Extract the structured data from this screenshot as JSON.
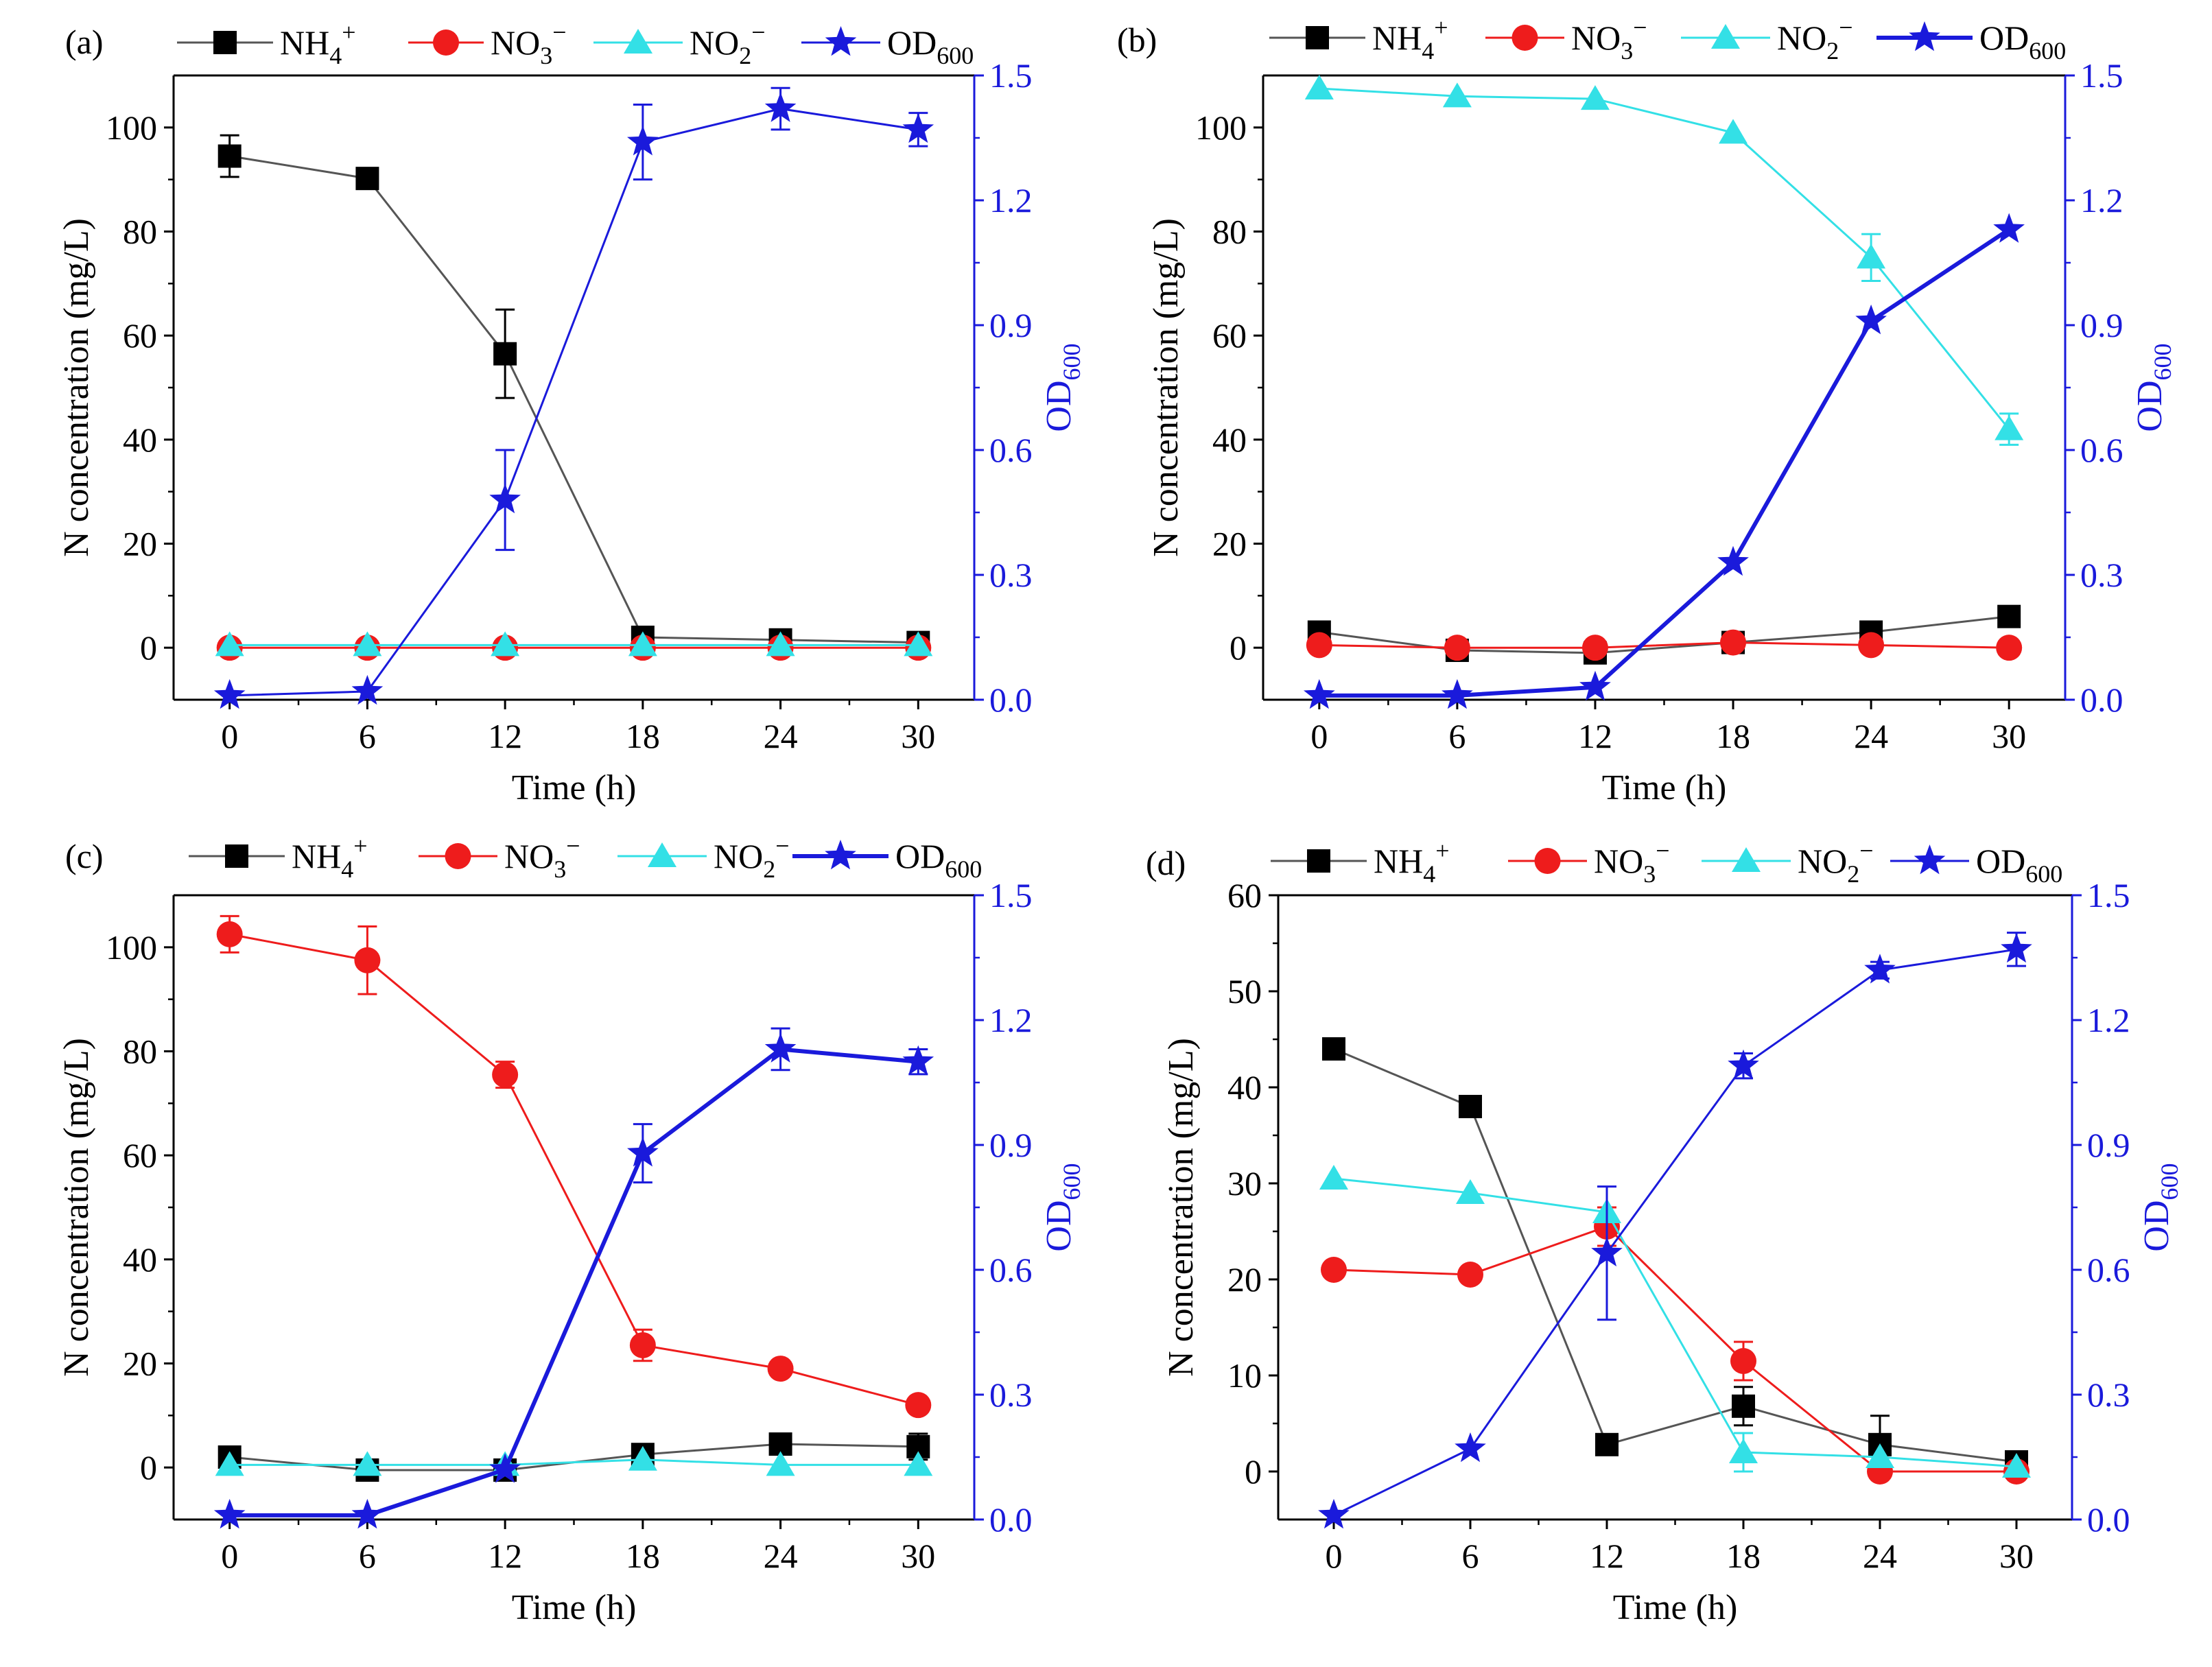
{
  "figure": {
    "colors": {
      "NH4": "#000000",
      "NO3": "#ee1c1c",
      "NO2": "#33e0e6",
      "OD": "#1a1adb",
      "nh4_line": "#555555",
      "axis": "#000000"
    },
    "legend": {
      "nh4": {
        "base": "NH",
        "sub": "4",
        "sup": "+"
      },
      "no3": {
        "base": "NO",
        "sub": "3",
        "sup": "−"
      },
      "no2": {
        "base": "NO",
        "sub": "2",
        "sup": "−"
      },
      "od": {
        "base": "OD",
        "sub": "600"
      }
    }
  },
  "chart_data": [
    {
      "panel_label": "(a)",
      "type": "line",
      "xlabel": "Time (h)",
      "ylabel_left": "N concentration (mg/L)",
      "ylabel_right": {
        "base": "OD",
        "sub": "600"
      },
      "x": [
        0,
        6,
        12,
        18,
        24,
        30
      ],
      "xticks": [
        "0",
        "6",
        "12",
        "18",
        "24",
        "30"
      ],
      "ylim_left": [
        -10,
        110
      ],
      "yticks_left": [
        "0",
        "20",
        "40",
        "60",
        "80",
        "100"
      ],
      "ylim_right": [
        0,
        1.5
      ],
      "yticks_right": [
        "0.0",
        "0.3",
        "0.6",
        "0.9",
        "1.2",
        "1.5"
      ],
      "series": [
        {
          "name": "NH4+",
          "axis": "left",
          "values": [
            94.5,
            90.2,
            56.5,
            2.0,
            1.5,
            1.0
          ],
          "errors": [
            4.0,
            0,
            8.5,
            0,
            0,
            0
          ],
          "line_width": 3
        },
        {
          "name": "NO3-",
          "axis": "left",
          "values": [
            0,
            0,
            0,
            0,
            0,
            0
          ],
          "errors": [
            0,
            0,
            0,
            0,
            0,
            0
          ],
          "line_width": 3
        },
        {
          "name": "NO2-",
          "axis": "left",
          "values": [
            0.5,
            0.5,
            0.5,
            0.5,
            0.5,
            0.5
          ],
          "errors": [
            0,
            0,
            0,
            0,
            0,
            0
          ],
          "line_width": 3
        },
        {
          "name": "OD600",
          "axis": "right",
          "values": [
            0.01,
            0.02,
            0.48,
            1.34,
            1.42,
            1.37
          ],
          "errors": [
            0,
            0,
            0.12,
            0.09,
            0.05,
            0.04
          ],
          "line_width": 3
        }
      ]
    },
    {
      "panel_label": "(b)",
      "type": "line",
      "xlabel": "Time (h)",
      "ylabel_left": "N concentration (mg/L)",
      "ylabel_right": {
        "base": "OD",
        "sub": "600"
      },
      "x": [
        0,
        6,
        12,
        18,
        24,
        30
      ],
      "xticks": [
        "0",
        "6",
        "12",
        "18",
        "24",
        "30"
      ],
      "ylim_left": [
        -10,
        110
      ],
      "yticks_left": [
        "0",
        "20",
        "40",
        "60",
        "80",
        "100"
      ],
      "ylim_right": [
        0,
        1.5
      ],
      "yticks_right": [
        "0.0",
        "0.3",
        "0.6",
        "0.9",
        "1.2",
        "1.5"
      ],
      "series": [
        {
          "name": "NH4+",
          "axis": "left",
          "values": [
            3.0,
            -0.5,
            -1.0,
            1.0,
            3.0,
            6.0
          ],
          "errors": [
            0,
            0,
            0,
            0,
            2.0,
            0
          ],
          "line_width": 3
        },
        {
          "name": "NO3-",
          "axis": "left",
          "values": [
            0.5,
            0,
            0,
            1.0,
            0.5,
            0
          ],
          "errors": [
            0,
            0,
            0,
            0,
            0,
            0
          ],
          "line_width": 3
        },
        {
          "name": "NO2-",
          "axis": "left",
          "values": [
            107.5,
            106,
            105.5,
            99,
            75,
            42
          ],
          "errors": [
            0,
            0,
            0,
            0,
            4.5,
            3.0
          ],
          "line_width": 3
        },
        {
          "name": "OD600",
          "axis": "right",
          "values": [
            0.01,
            0.01,
            0.03,
            0.33,
            0.91,
            1.13
          ],
          "errors": [
            0,
            0,
            0,
            0,
            0,
            0
          ],
          "line_width": 6
        }
      ]
    },
    {
      "panel_label": "(c)",
      "type": "line",
      "xlabel": "Time (h)",
      "ylabel_left": "N concentration (mg/L)",
      "ylabel_right": {
        "base": "OD",
        "sub": "600"
      },
      "x": [
        0,
        6,
        12,
        18,
        24,
        30
      ],
      "xticks": [
        "0",
        "6",
        "12",
        "18",
        "24",
        "30"
      ],
      "ylim_left": [
        -10,
        110
      ],
      "yticks_left": [
        "0",
        "20",
        "40",
        "60",
        "80",
        "100"
      ],
      "ylim_right": [
        0,
        1.5
      ],
      "yticks_right": [
        "0.0",
        "0.3",
        "0.6",
        "0.9",
        "1.2",
        "1.5"
      ],
      "series": [
        {
          "name": "NH4+",
          "axis": "left",
          "values": [
            2.0,
            -0.5,
            -0.5,
            2.5,
            4.5,
            4.0
          ],
          "errors": [
            0,
            0,
            0,
            0,
            0,
            2.5
          ],
          "line_width": 3
        },
        {
          "name": "NO3-",
          "axis": "left",
          "values": [
            102.5,
            97.5,
            75.5,
            23.5,
            19.0,
            12.0
          ],
          "errors": [
            3.5,
            6.5,
            2.5,
            3.0,
            0,
            0
          ],
          "line_width": 3
        },
        {
          "name": "NO2-",
          "axis": "left",
          "values": [
            0.5,
            0.5,
            0.5,
            1.5,
            0.5,
            0.5
          ],
          "errors": [
            0,
            0,
            0,
            0,
            0,
            0
          ],
          "line_width": 3
        },
        {
          "name": "OD600",
          "axis": "right",
          "values": [
            0.01,
            0.01,
            0.12,
            0.88,
            1.13,
            1.1
          ],
          "errors": [
            0,
            0,
            0,
            0.07,
            0.05,
            0.03
          ],
          "line_width": 6
        }
      ]
    },
    {
      "panel_label": "(d)",
      "type": "line",
      "xlabel": "Time (h)",
      "ylabel_left": "N concentration (mg/L)",
      "ylabel_right": {
        "base": "OD",
        "sub": "600"
      },
      "x": [
        0,
        6,
        12,
        18,
        24,
        30
      ],
      "xticks": [
        "0",
        "6",
        "12",
        "18",
        "24",
        "30"
      ],
      "ylim_left": [
        -5,
        60
      ],
      "yticks_left": [
        "0",
        "10",
        "20",
        "30",
        "40",
        "50",
        "60"
      ],
      "ylim_right": [
        0,
        1.5
      ],
      "yticks_right": [
        "0.0",
        "0.3",
        "0.6",
        "0.9",
        "1.2",
        "1.5"
      ],
      "series": [
        {
          "name": "NH4+",
          "axis": "left",
          "values": [
            44.0,
            38.0,
            2.8,
            6.8,
            2.8,
            1.0
          ],
          "errors": [
            0,
            0,
            0,
            2.0,
            3.0,
            0
          ],
          "line_width": 3
        },
        {
          "name": "NO3-",
          "axis": "left",
          "values": [
            21.0,
            20.5,
            25.5,
            11.5,
            0.0,
            0.0
          ],
          "errors": [
            0,
            0,
            2.0,
            2.0,
            0,
            0
          ],
          "line_width": 3
        },
        {
          "name": "NO2-",
          "axis": "left",
          "values": [
            30.5,
            29.0,
            27.0,
            2.0,
            1.5,
            0.5
          ],
          "errors": [
            0,
            0,
            0,
            2.0,
            0,
            0
          ],
          "line_width": 3
        },
        {
          "name": "OD600",
          "axis": "right",
          "values": [
            0.01,
            0.17,
            0.64,
            1.09,
            1.32,
            1.37
          ],
          "errors": [
            0,
            0,
            0.16,
            0.03,
            0.02,
            0.04
          ],
          "line_width": 3
        }
      ]
    }
  ]
}
